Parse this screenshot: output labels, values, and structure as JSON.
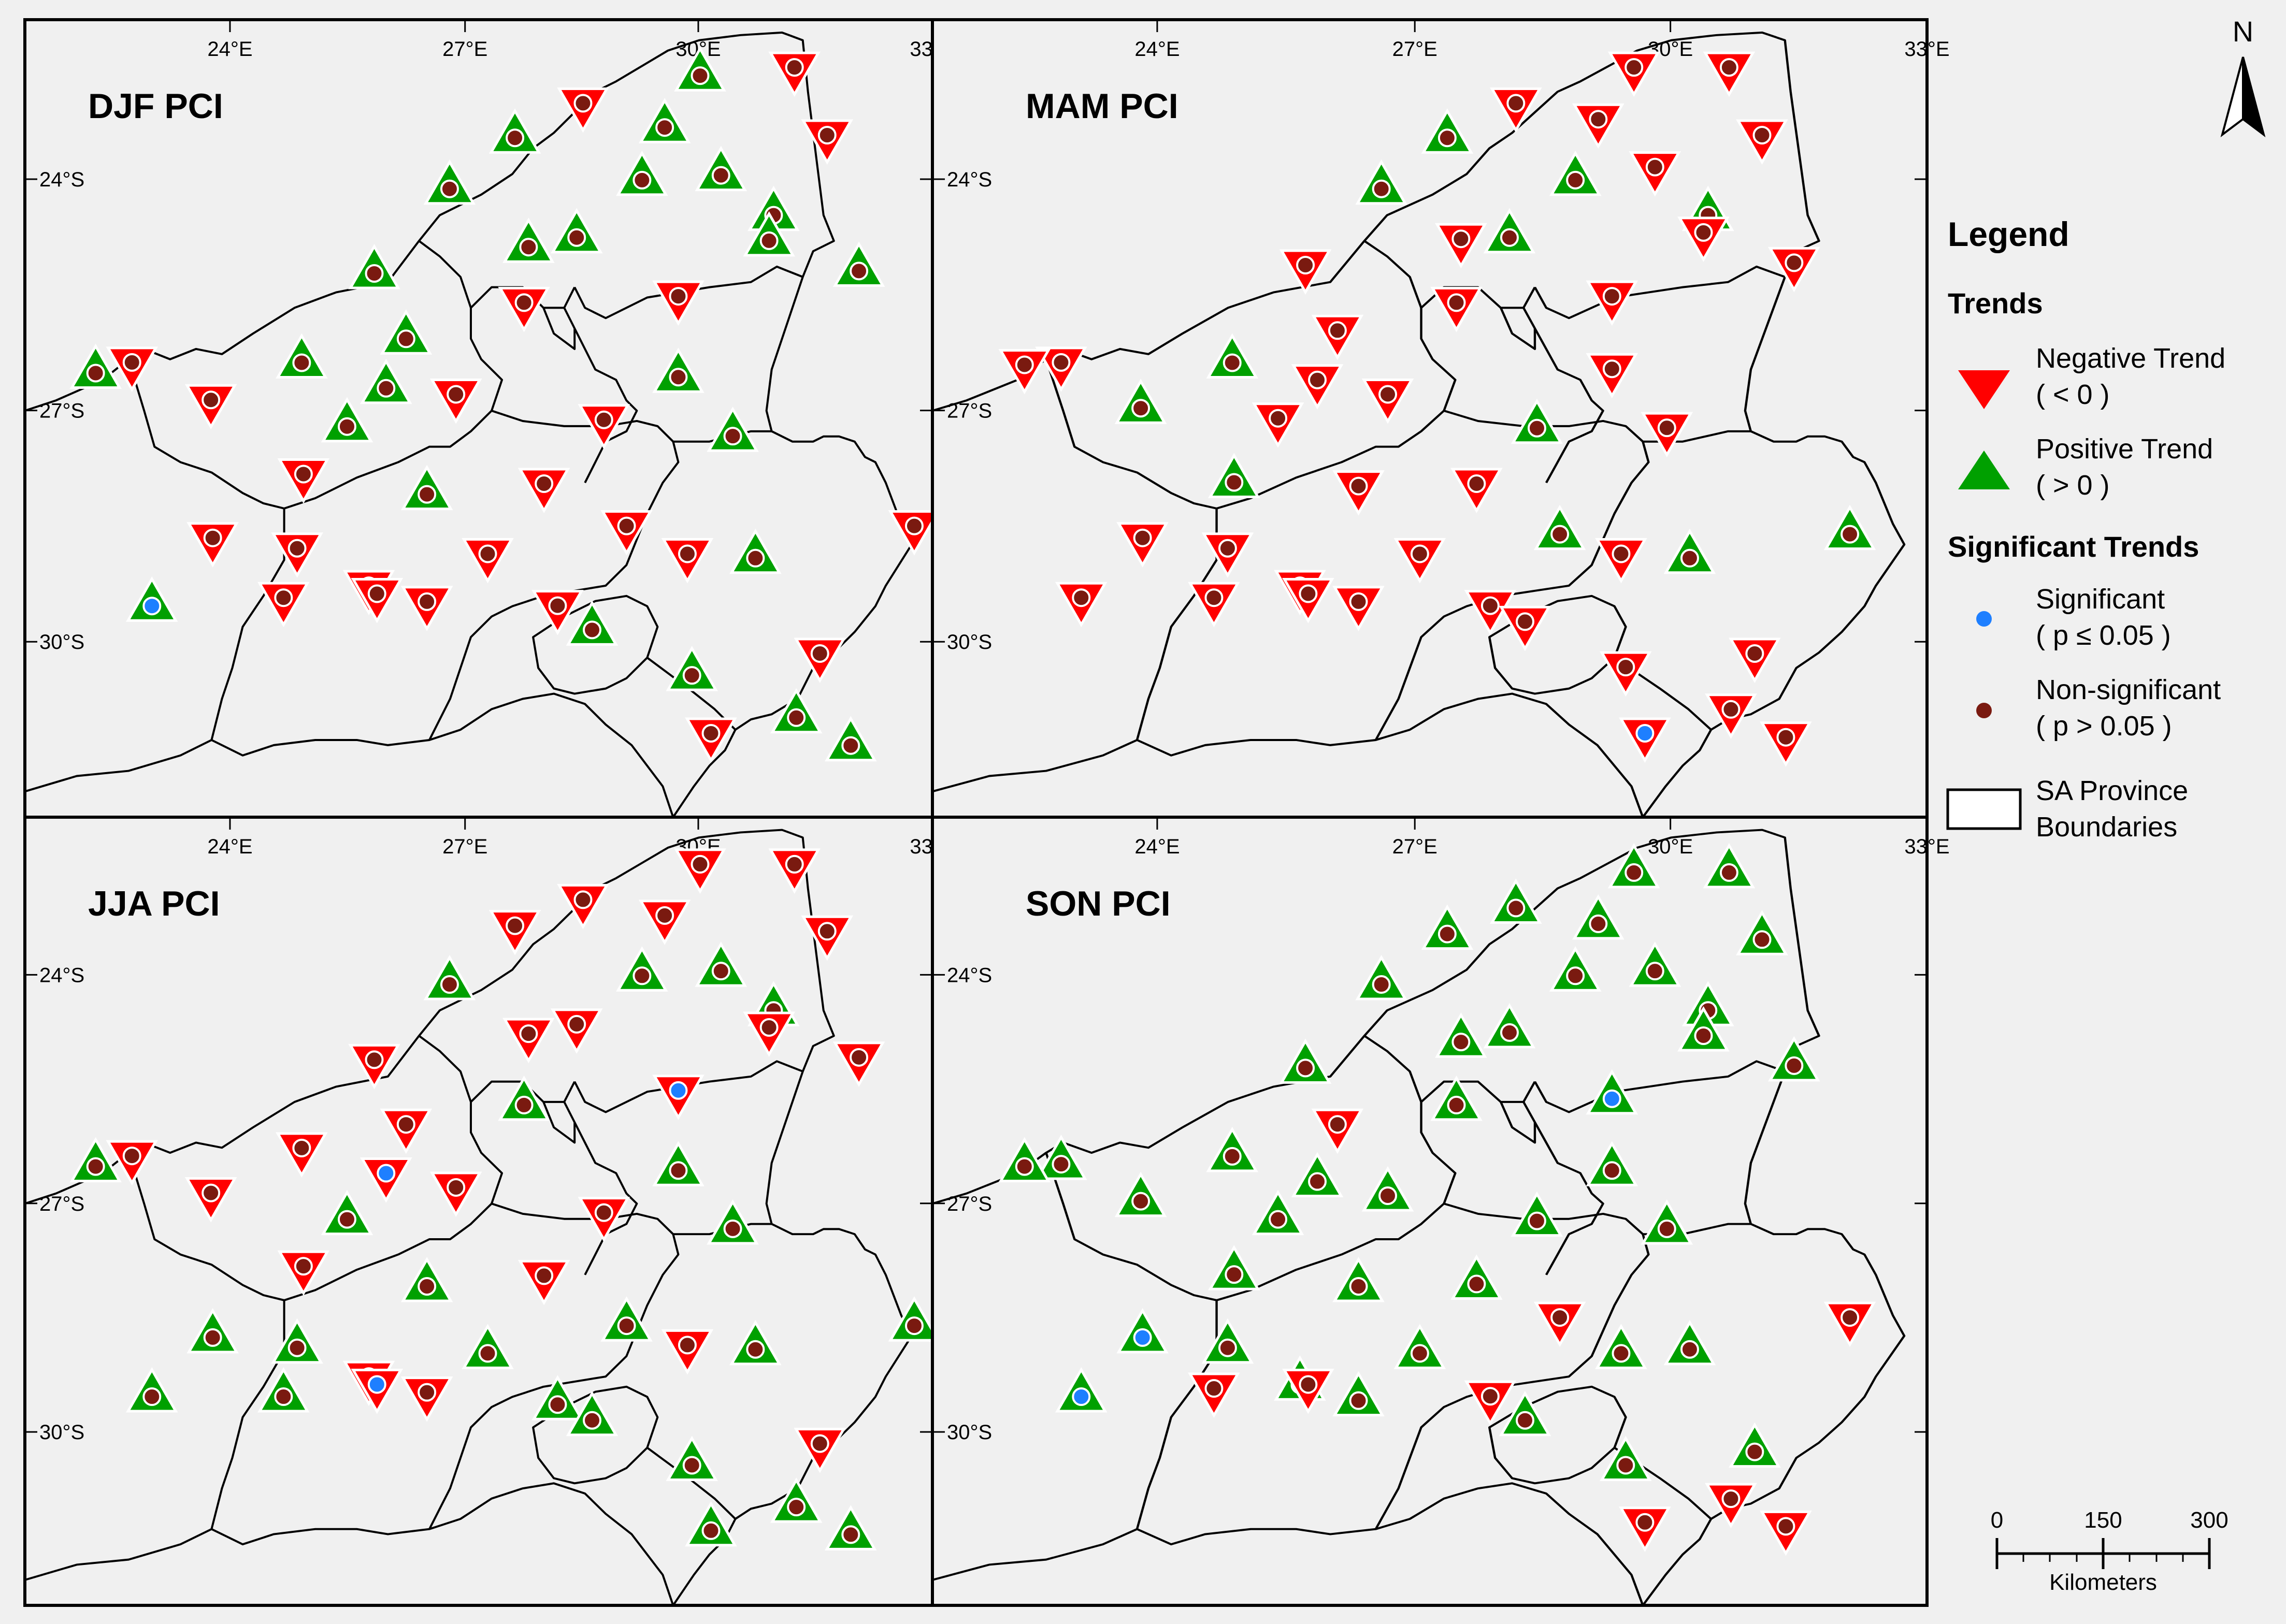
{
  "panels": [
    {
      "title": "DJF PCI",
      "markers": [
        "neg",
        "neg",
        "pos",
        "pos",
        "pos",
        "pos",
        "pos",
        "pos",
        "pos",
        "pos",
        "pos",
        "pos",
        "neg",
        "pos",
        "pos",
        "pos",
        "neg",
        "neg",
        "pos",
        "pos",
        "neg",
        "pos",
        "pos",
        "neg",
        "neg",
        "pos",
        "pos",
        "neg",
        "neg",
        "pos",
        "neg",
        "neg",
        "neg",
        "neg",
        "neg",
        "neg",
        "pos",
        "neg",
        "neg",
        "neg",
        "neg",
        "pos",
        "neg",
        "pos",
        "neg",
        "pos",
        "neg",
        "pos",
        "pos",
        "neg"
      ],
      "significant": [
        36
      ]
    },
    {
      "title": "MAM PCI",
      "markers": [
        "neg",
        "pos",
        "neg",
        "pos",
        "neg",
        "neg",
        "neg",
        "neg",
        "pos",
        "pos",
        "neg",
        "pos",
        "neg",
        "pos",
        "neg",
        "neg",
        "neg",
        "neg",
        "neg",
        "pos",
        "neg",
        "neg",
        "neg",
        "neg",
        "neg",
        "neg",
        "neg",
        "pos",
        "neg",
        "neg",
        "pos",
        "neg",
        "neg",
        "neg",
        "neg",
        "neg",
        "neg",
        "neg",
        "neg",
        "neg",
        "pos",
        "neg",
        "neg",
        "pos",
        "neg",
        "neg",
        "neg",
        "neg",
        "neg",
        "pos"
      ],
      "significant": [
        46
      ]
    },
    {
      "title": "JJA PCI",
      "markers": [
        "neg",
        "neg",
        "pos",
        "neg",
        "pos",
        "neg",
        "neg",
        "neg",
        "pos",
        "neg",
        "neg",
        "neg",
        "neg",
        "pos",
        "neg",
        "neg",
        "neg",
        "neg",
        "pos",
        "pos",
        "neg",
        "neg",
        "neg",
        "pos",
        "neg",
        "pos",
        "pos",
        "neg",
        "neg",
        "pos",
        "neg",
        "pos",
        "pos",
        "neg",
        "neg",
        "pos",
        "pos",
        "pos",
        "neg",
        "pos",
        "pos",
        "pos",
        "neg",
        "pos",
        "neg",
        "pos",
        "pos",
        "pos",
        "pos",
        "pos"
      ],
      "significant": [
        5,
        38,
        16
      ]
    },
    {
      "title": "SON PCI",
      "markers": [
        "pos",
        "pos",
        "pos",
        "pos",
        "pos",
        "pos",
        "neg",
        "pos",
        "pos",
        "pos",
        "pos",
        "pos",
        "pos",
        "pos",
        "pos",
        "pos",
        "pos",
        "pos",
        "pos",
        "pos",
        "pos",
        "pos",
        "pos",
        "pos",
        "pos",
        "pos",
        "pos",
        "pos",
        "pos",
        "pos",
        "pos",
        "pos",
        "pos",
        "pos",
        "pos",
        "neg",
        "pos",
        "neg",
        "neg",
        "pos",
        "neg",
        "pos",
        "pos",
        "pos",
        "pos",
        "pos",
        "neg",
        "neg",
        "neg",
        "neg"
      ],
      "significant": [
        16,
        36,
        31
      ]
    }
  ],
  "axes": {
    "lon_labels": [
      "24°E",
      "27°E",
      "30°E",
      "33°E"
    ],
    "lat_labels": [
      "24°S",
      "27°S",
      "30°S"
    ]
  },
  "legend": {
    "title": "Legend",
    "trends_heading": "Trends",
    "negative_label": "Negative Trend",
    "negative_sub": "( < 0 )",
    "positive_label": "Positive Trend",
    "positive_sub": "( > 0 )",
    "significance_heading": "Significant Trends",
    "significant_label": "Significant",
    "significant_sub": "( p ≤ 0.05 )",
    "nonsignificant_label": "Non-significant",
    "nonsignificant_sub": "( p > 0.05 )",
    "boundary_label_1": "SA Province",
    "boundary_label_2": "Boundaries"
  },
  "north_label": "N",
  "scale_bar": {
    "ticks": [
      "0",
      "150",
      "300"
    ],
    "units": "Kilometers"
  },
  "colors": {
    "negative": "#ff0000",
    "positive": "#00a000",
    "significant": "#1e7fff",
    "nonsignificant": "#7a1a10",
    "background": "#f0f0f0"
  }
}
